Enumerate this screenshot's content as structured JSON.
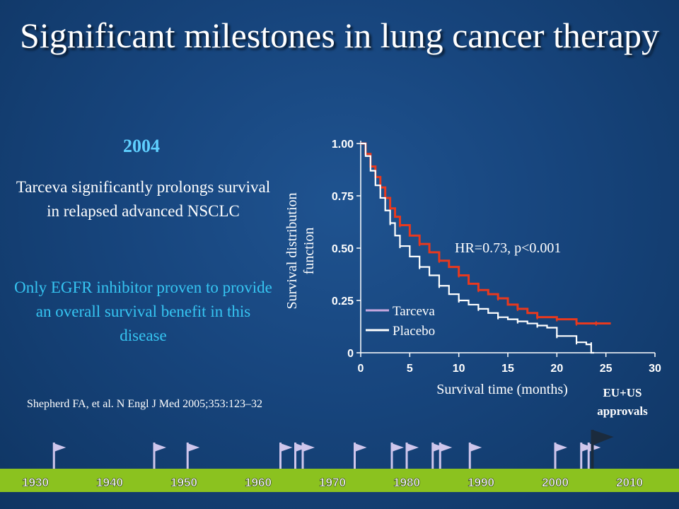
{
  "slide": {
    "title": "Significant milestones in lung cancer therapy",
    "year": "2004",
    "claim": "Tarceva significantly prolongs survival in relapsed advanced NSCLC",
    "claim2": "Only EGFR inhibitor proven to provide an overall survival benefit in this disease",
    "citation": "Shepherd FA, et al. N Engl J Med 2005;353:123–32",
    "approvals_line1": "EU+US",
    "approvals_line2": "approvals"
  },
  "colors": {
    "background": "#17457d",
    "claim_highlight": "#36c5f2",
    "year_color": "#5fd0ff",
    "tarceva_line": "#e8391e",
    "placebo_line": "#ffffff",
    "legend_tarceva_swatch": "#c8a8e0",
    "timeline_bar": "#8bc21f",
    "flag_color": "#cfc6ec",
    "final_flag_color": "#1b2b3d"
  },
  "chart_data": {
    "type": "line",
    "xlabel": "Survival time (months)",
    "ylabel": "Survival distribution function",
    "xlim": [
      0,
      30
    ],
    "ylim": [
      0,
      1
    ],
    "xticks": [
      0,
      5,
      10,
      15,
      20,
      25,
      30
    ],
    "yticks": [
      0,
      0.25,
      0.5,
      0.75,
      1.0
    ],
    "ytick_labels": [
      "0",
      "0.25",
      "0.50",
      "0.75",
      "1.00"
    ],
    "annotation": "HR=0.73, p<0.001",
    "series": [
      {
        "name": "Tarceva",
        "x": [
          0,
          0.5,
          1,
          1.5,
          2,
          2.5,
          3,
          3.5,
          4,
          5,
          6,
          7,
          8,
          9,
          10,
          11,
          12,
          13,
          14,
          15,
          16,
          17,
          18,
          19,
          20,
          21,
          22,
          23,
          24,
          25,
          25.5
        ],
        "y": [
          1.0,
          0.95,
          0.89,
          0.84,
          0.79,
          0.74,
          0.69,
          0.65,
          0.61,
          0.56,
          0.52,
          0.48,
          0.44,
          0.41,
          0.37,
          0.33,
          0.3,
          0.28,
          0.26,
          0.23,
          0.21,
          0.19,
          0.17,
          0.17,
          0.16,
          0.16,
          0.14,
          0.14,
          0.14,
          0.14,
          0.14
        ]
      },
      {
        "name": "Placebo",
        "x": [
          0,
          0.5,
          1,
          1.5,
          2,
          2.5,
          3,
          3.5,
          4,
          5,
          6,
          7,
          8,
          9,
          10,
          11,
          12,
          13,
          14,
          15,
          16,
          17,
          18,
          19,
          20,
          21,
          22,
          23,
          23.5,
          23.5,
          23.8
        ],
        "y": [
          1.0,
          0.94,
          0.87,
          0.8,
          0.74,
          0.68,
          0.62,
          0.56,
          0.51,
          0.46,
          0.41,
          0.37,
          0.32,
          0.28,
          0.25,
          0.23,
          0.21,
          0.19,
          0.17,
          0.16,
          0.15,
          0.14,
          0.13,
          0.12,
          0.08,
          0.08,
          0.05,
          0.04,
          0.04,
          0.0,
          0.0
        ]
      }
    ]
  },
  "timeline": {
    "decades": [
      "1930",
      "1940",
      "1950",
      "1960",
      "1970",
      "1980",
      "1990",
      "2000",
      "2010"
    ],
    "flag_years": [
      1932.5,
      1946,
      1950.5,
      1963,
      1965,
      1966,
      1973,
      1978,
      1980,
      1983.5,
      1984.5,
      1988.5,
      2000,
      2003.5,
      2004.5
    ],
    "final_flag_year": 2005
  }
}
